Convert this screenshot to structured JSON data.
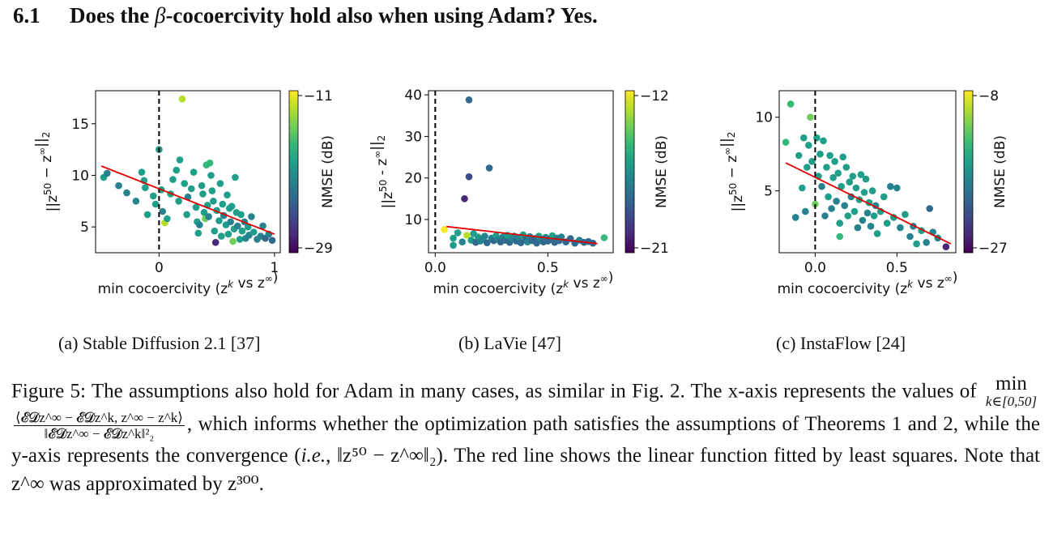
{
  "section": {
    "number": "6.1",
    "title_before": "Does the ",
    "beta": "β",
    "title_after": "-cocoercivity hold also when using Adam? Yes."
  },
  "colors": {
    "fit_line": "#e00000",
    "viridis": [
      "#440154",
      "#482878",
      "#3e4989",
      "#31688e",
      "#26828e",
      "#1f9e89",
      "#35b779",
      "#6ece58",
      "#b5de2b",
      "#fde725"
    ]
  },
  "subplots": [
    {
      "caption": "(a) Stable Diffusion 2.1 [37]",
      "chart_data": {
        "type": "scatter",
        "title": "",
        "xlabel": "min cocoercivity (z^k vs z^∞)",
        "ylabel": "||z^50 − z^∞||_2",
        "xlim": [
          -0.55,
          1.05
        ],
        "ylim": [
          2.5,
          18.2
        ],
        "xticks": [
          0,
          1
        ],
        "xtick_labels": [
          "0",
          "1"
        ],
        "yticks": [
          5,
          10,
          15
        ],
        "ytick_labels": [
          "5",
          "10",
          "15"
        ],
        "colorbar": {
          "label": "NMSE (dB)",
          "range": [
            -29,
            -11
          ],
          "tick_labels": [
            "−11",
            "−29"
          ]
        },
        "fit_line": {
          "x": [
            -0.5,
            1.0
          ],
          "y": [
            10.9,
            4.3
          ]
        },
        "points": [
          [
            -0.48,
            9.8,
            0.5
          ],
          [
            -0.45,
            10.2,
            0.45
          ],
          [
            -0.35,
            9.0,
            0.4
          ],
          [
            -0.28,
            8.3,
            0.45
          ],
          [
            -0.2,
            7.5,
            0.4
          ],
          [
            -0.15,
            10.3,
            0.5
          ],
          [
            -0.13,
            9.5,
            0.6
          ],
          [
            -0.12,
            8.8,
            0.55
          ],
          [
            -0.1,
            6.2,
            0.5
          ],
          [
            -0.05,
            8.0,
            0.55
          ],
          [
            -0.03,
            7.2,
            0.5
          ],
          [
            0.0,
            12.5,
            0.6
          ],
          [
            0.02,
            8.6,
            0.5
          ],
          [
            0.03,
            6.5,
            0.45
          ],
          [
            0.05,
            5.4,
            0.85
          ],
          [
            0.07,
            5.8,
            0.6
          ],
          [
            0.1,
            8.2,
            0.5
          ],
          [
            0.12,
            9.6,
            0.55
          ],
          [
            0.15,
            10.5,
            0.6
          ],
          [
            0.17,
            7.5,
            0.5
          ],
          [
            0.18,
            11.5,
            0.6
          ],
          [
            0.2,
            17.4,
            0.88
          ],
          [
            0.22,
            9.2,
            0.55
          ],
          [
            0.24,
            6.2,
            0.6
          ],
          [
            0.25,
            7.9,
            0.45
          ],
          [
            0.28,
            8.7,
            0.5
          ],
          [
            0.3,
            10.3,
            0.5
          ],
          [
            0.32,
            6.9,
            0.55
          ],
          [
            0.33,
            5.5,
            0.6
          ],
          [
            0.34,
            4.4,
            0.5
          ],
          [
            0.35,
            5.2,
            0.45
          ],
          [
            0.37,
            9.0,
            0.6
          ],
          [
            0.38,
            8.2,
            0.5
          ],
          [
            0.39,
            6.4,
            0.55
          ],
          [
            0.4,
            5.8,
            0.8
          ],
          [
            0.41,
            11.0,
            0.65
          ],
          [
            0.42,
            7.1,
            0.5
          ],
          [
            0.43,
            6.0,
            0.45
          ],
          [
            0.44,
            11.2,
            0.7
          ],
          [
            0.45,
            10.0,
            0.6
          ],
          [
            0.46,
            8.5,
            0.5
          ],
          [
            0.47,
            7.5,
            0.55
          ],
          [
            0.48,
            4.6,
            0.5
          ],
          [
            0.49,
            3.5,
            0.1
          ],
          [
            0.5,
            6.6,
            0.5
          ],
          [
            0.52,
            5.6,
            0.55
          ],
          [
            0.53,
            9.2,
            0.6
          ],
          [
            0.54,
            4.1,
            0.5
          ],
          [
            0.55,
            7.2,
            0.5
          ],
          [
            0.56,
            6.1,
            0.45
          ],
          [
            0.58,
            5.2,
            0.55
          ],
          [
            0.59,
            8.1,
            0.6
          ],
          [
            0.6,
            4.3,
            0.5
          ],
          [
            0.61,
            6.8,
            0.5
          ],
          [
            0.62,
            5.5,
            0.45
          ],
          [
            0.63,
            7.0,
            0.5
          ],
          [
            0.64,
            3.6,
            0.8
          ],
          [
            0.65,
            4.8,
            0.55
          ],
          [
            0.66,
            9.8,
            0.55
          ],
          [
            0.67,
            6.4,
            0.5
          ],
          [
            0.68,
            5.1,
            0.45
          ],
          [
            0.7,
            3.8,
            0.5
          ],
          [
            0.71,
            6.2,
            0.55
          ],
          [
            0.72,
            4.6,
            0.5
          ],
          [
            0.74,
            5.5,
            0.45
          ],
          [
            0.75,
            3.9,
            0.4
          ],
          [
            0.77,
            5.0,
            0.5
          ],
          [
            0.78,
            4.2,
            0.45
          ],
          [
            0.8,
            6.0,
            0.4
          ],
          [
            0.82,
            4.5,
            0.5
          ],
          [
            0.85,
            3.8,
            0.45
          ],
          [
            0.88,
            4.1,
            0.4
          ],
          [
            0.9,
            5.1,
            0.45
          ],
          [
            0.92,
            3.9,
            0.35
          ],
          [
            0.95,
            4.3,
            0.4
          ],
          [
            0.98,
            3.7,
            0.35
          ]
        ]
      }
    },
    {
      "caption": "(b) LaVie [47]",
      "chart_data": {
        "type": "scatter",
        "title": "",
        "xlabel": "min cocoercivity (z^k vs z^∞)",
        "ylabel": "||z^50 - z^∞||_2",
        "xlim": [
          -0.03,
          0.79
        ],
        "ylim": [
          2.0,
          41.0
        ],
        "xticks": [
          0.0,
          0.5
        ],
        "xtick_labels": [
          "0.0",
          "0.5"
        ],
        "yticks": [
          10,
          20,
          30,
          40
        ],
        "ytick_labels": [
          "10",
          "20",
          "30",
          "40"
        ],
        "colorbar": {
          "label": "NMSE (dB)",
          "range": [
            -22.5,
            -11.5
          ],
          "tick_labels": [
            "−12",
            "−21"
          ]
        },
        "fit_line": {
          "x": [
            0.05,
            0.72
          ],
          "y": [
            8.3,
            4.2
          ]
        },
        "points": [
          [
            0.04,
            7.6,
            0.95
          ],
          [
            0.08,
            5.5,
            0.6
          ],
          [
            0.08,
            3.8,
            0.5
          ],
          [
            0.1,
            6.8,
            0.5
          ],
          [
            0.12,
            4.6,
            0.45
          ],
          [
            0.13,
            15.0,
            0.15
          ],
          [
            0.14,
            6.2,
            0.85
          ],
          [
            0.15,
            38.8,
            0.35
          ],
          [
            0.15,
            20.3,
            0.2
          ],
          [
            0.16,
            5.0,
            0.5
          ],
          [
            0.17,
            6.6,
            0.55
          ],
          [
            0.18,
            4.5,
            0.3
          ],
          [
            0.19,
            5.8,
            0.5
          ],
          [
            0.2,
            4.8,
            0.4
          ],
          [
            0.21,
            5.3,
            0.45
          ],
          [
            0.22,
            6.0,
            0.4
          ],
          [
            0.23,
            4.4,
            0.35
          ],
          [
            0.24,
            22.4,
            0.3
          ],
          [
            0.25,
            5.5,
            0.45
          ],
          [
            0.26,
            4.9,
            0.3
          ],
          [
            0.27,
            6.1,
            0.55
          ],
          [
            0.28,
            5.2,
            0.4
          ],
          [
            0.29,
            4.6,
            0.35
          ],
          [
            0.3,
            5.8,
            0.45
          ],
          [
            0.31,
            5.0,
            0.3
          ],
          [
            0.32,
            6.2,
            0.5
          ],
          [
            0.33,
            4.5,
            0.35
          ],
          [
            0.34,
            5.4,
            0.4
          ],
          [
            0.35,
            6.0,
            0.45
          ],
          [
            0.36,
            4.8,
            0.3
          ],
          [
            0.37,
            5.6,
            0.4
          ],
          [
            0.38,
            4.4,
            0.35
          ],
          [
            0.39,
            6.3,
            0.55
          ],
          [
            0.4,
            5.1,
            0.3
          ],
          [
            0.41,
            4.6,
            0.4
          ],
          [
            0.42,
            5.9,
            0.45
          ],
          [
            0.43,
            4.9,
            0.35
          ],
          [
            0.44,
            5.4,
            0.3
          ],
          [
            0.45,
            4.3,
            0.35
          ],
          [
            0.46,
            6.0,
            0.5
          ],
          [
            0.47,
            5.2,
            0.4
          ],
          [
            0.48,
            4.6,
            0.3
          ],
          [
            0.49,
            5.7,
            0.45
          ],
          [
            0.5,
            4.8,
            0.35
          ],
          [
            0.51,
            5.3,
            0.3
          ],
          [
            0.52,
            6.1,
            0.5
          ],
          [
            0.53,
            4.5,
            0.35
          ],
          [
            0.54,
            5.5,
            0.4
          ],
          [
            0.55,
            4.9,
            0.3
          ],
          [
            0.56,
            5.8,
            0.45
          ],
          [
            0.58,
            4.6,
            0.35
          ],
          [
            0.6,
            5.4,
            0.3
          ],
          [
            0.62,
            4.3,
            0.35
          ],
          [
            0.64,
            5.0,
            0.4
          ],
          [
            0.66,
            4.5,
            0.3
          ],
          [
            0.68,
            4.7,
            0.35
          ],
          [
            0.7,
            4.3,
            0.3
          ],
          [
            0.75,
            5.6,
            0.65
          ]
        ]
      }
    },
    {
      "caption": "(c) InstaFlow [24]",
      "chart_data": {
        "type": "scatter",
        "title": "",
        "xlabel": "min cocoercivity (z^k vs z^∞)",
        "ylabel": "||z^50 − z^∞||_2",
        "xlim": [
          -0.22,
          0.86
        ],
        "ylim": [
          0.8,
          11.8
        ],
        "xticks": [
          0.0,
          0.5
        ],
        "xtick_labels": [
          "0.0",
          "0.5"
        ],
        "yticks": [
          5,
          10
        ],
        "ytick_labels": [
          "5",
          "10"
        ],
        "colorbar": {
          "label": "NMSE (dB)",
          "range": [
            -27,
            -8
          ],
          "tick_labels": [
            "−8",
            "−27"
          ]
        },
        "fit_line": {
          "x": [
            -0.18,
            0.83
          ],
          "y": [
            6.9,
            1.4
          ]
        },
        "points": [
          [
            -0.18,
            8.3,
            0.7
          ],
          [
            -0.15,
            10.9,
            0.7
          ],
          [
            -0.12,
            3.2,
            0.4
          ],
          [
            -0.1,
            7.4,
            0.6
          ],
          [
            -0.08,
            5.2,
            0.5
          ],
          [
            -0.07,
            8.6,
            0.55
          ],
          [
            -0.06,
            3.6,
            0.45
          ],
          [
            -0.05,
            6.6,
            0.55
          ],
          [
            -0.04,
            8.1,
            0.6
          ],
          [
            -0.03,
            10.0,
            0.75
          ],
          [
            -0.02,
            7.0,
            0.5
          ],
          [
            0.0,
            4.1,
            0.75
          ],
          [
            0.01,
            8.6,
            0.55
          ],
          [
            0.02,
            6.0,
            0.5
          ],
          [
            0.03,
            7.5,
            0.55
          ],
          [
            0.04,
            5.3,
            0.45
          ],
          [
            0.05,
            8.4,
            0.5
          ],
          [
            0.06,
            3.3,
            0.4
          ],
          [
            0.07,
            6.6,
            0.55
          ],
          [
            0.08,
            4.6,
            0.5
          ],
          [
            0.09,
            7.4,
            0.6
          ],
          [
            0.1,
            3.8,
            0.45
          ],
          [
            0.11,
            5.9,
            0.55
          ],
          [
            0.12,
            7.0,
            0.5
          ],
          [
            0.13,
            4.3,
            0.45
          ],
          [
            0.14,
            6.2,
            0.55
          ],
          [
            0.15,
            2.8,
            0.6
          ],
          [
            0.15,
            1.9,
            0.7
          ],
          [
            0.16,
            5.3,
            0.5
          ],
          [
            0.17,
            7.3,
            0.55
          ],
          [
            0.18,
            4.0,
            0.45
          ],
          [
            0.19,
            6.6,
            0.6
          ],
          [
            0.2,
            3.3,
            0.5
          ],
          [
            0.21,
            5.6,
            0.55
          ],
          [
            0.22,
            4.6,
            0.45
          ],
          [
            0.23,
            6.0,
            0.6
          ],
          [
            0.24,
            3.6,
            0.5
          ],
          [
            0.25,
            5.2,
            0.55
          ],
          [
            0.26,
            2.5,
            0.4
          ],
          [
            0.27,
            4.4,
            0.5
          ],
          [
            0.28,
            6.1,
            0.6
          ],
          [
            0.29,
            3.0,
            0.45
          ],
          [
            0.3,
            4.9,
            0.55
          ],
          [
            0.31,
            5.8,
            0.5
          ],
          [
            0.32,
            3.5,
            0.4
          ],
          [
            0.33,
            4.2,
            0.5
          ],
          [
            0.34,
            2.6,
            0.45
          ],
          [
            0.35,
            5.0,
            0.55
          ],
          [
            0.36,
            3.3,
            0.5
          ],
          [
            0.37,
            4.0,
            0.45
          ],
          [
            0.38,
            2.1,
            0.6
          ],
          [
            0.4,
            3.6,
            0.5
          ],
          [
            0.42,
            4.6,
            0.55
          ],
          [
            0.44,
            2.8,
            0.5
          ],
          [
            0.46,
            5.3,
            0.45
          ],
          [
            0.48,
            3.2,
            0.5
          ],
          [
            0.5,
            5.2,
            0.4
          ],
          [
            0.52,
            2.5,
            0.45
          ],
          [
            0.55,
            3.4,
            0.5
          ],
          [
            0.58,
            1.9,
            0.4
          ],
          [
            0.6,
            2.6,
            0.45
          ],
          [
            0.62,
            1.4,
            0.5
          ],
          [
            0.65,
            2.3,
            0.55
          ],
          [
            0.68,
            1.5,
            0.4
          ],
          [
            0.7,
            3.8,
            0.35
          ],
          [
            0.72,
            2.2,
            0.45
          ],
          [
            0.75,
            1.8,
            0.4
          ],
          [
            0.8,
            1.2,
            0.15
          ]
        ]
      }
    }
  ],
  "figure_caption": {
    "part1": "Figure 5: The assumptions also hold for Adam in many cases, as similar in Fig. 2. The x-axis represents the values of",
    "min_op": "min",
    "min_sub": "k∈[0,50]",
    "frac_num": "⟨𝓔𝓓z^∞ − 𝓔𝓓z^k, z^∞ − z^k⟩",
    "frac_den": "‖𝓔𝓓z^∞ − 𝓔𝓓z^k‖²₂",
    "part2": ", which informs whether the optimization path satisfies the assumptions of Theorems 1 and 2, while the y-axis represents the convergence (",
    "ie": "i.e.",
    "part3": ", ‖z⁵⁰ − z^∞‖₂). The red line shows the linear function fitted by least squares. Note that z^∞ was approximated by z³⁰⁰."
  }
}
